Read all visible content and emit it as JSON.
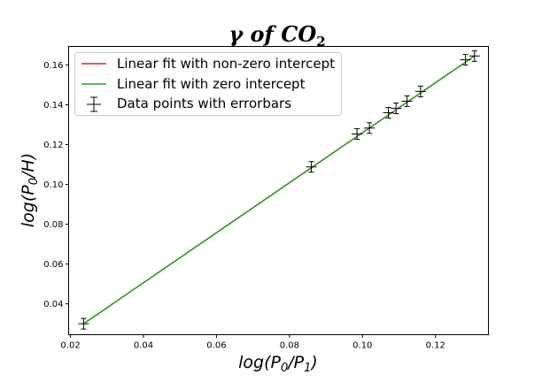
{
  "chart_data": {
    "type": "line",
    "title": {
      "main": "γ of CO",
      "sub": "2"
    },
    "xlabel": {
      "base": "log(P",
      "sub1": "0",
      "mid": "/P",
      "sub2": "1",
      "end": ")"
    },
    "ylabel": {
      "base": "log(P",
      "sub1": "0",
      "end": "/H)"
    },
    "xlim": [
      0.0195,
      0.1345
    ],
    "ylim": [
      0.0245,
      0.1693
    ],
    "xticks": [
      0.02,
      0.04,
      0.06,
      0.08,
      0.1,
      0.12
    ],
    "xtick_labels": [
      "0.02",
      "0.04",
      "0.06",
      "0.08",
      "0.10",
      "0.12"
    ],
    "yticks": [
      0.04,
      0.06,
      0.08,
      0.1,
      0.12,
      0.14,
      0.16
    ],
    "ytick_labels": [
      "0.04",
      "0.06",
      "0.08",
      "0.10",
      "0.12",
      "0.14",
      "0.16"
    ],
    "grid": false,
    "legend_position": "upper-left",
    "series": [
      {
        "name": "Linear fit with non-zero intercept",
        "kind": "line",
        "color": "#d62728",
        "x": [
          0.0236,
          0.1307
        ],
        "y": [
          0.03,
          0.1645
        ]
      },
      {
        "name": "Linear fit with zero intercept",
        "kind": "line",
        "color": "#2ca02c",
        "x": [
          0.0236,
          0.1307
        ],
        "y": [
          0.03,
          0.1645
        ]
      },
      {
        "name": "Data points with errorbars",
        "kind": "errorbar",
        "color": "#000000",
        "x": [
          0.0236,
          0.086,
          0.0985,
          0.1019,
          0.1071,
          0.1092,
          0.1122,
          0.1159,
          0.1282,
          0.1307
        ],
        "y": [
          0.03,
          0.1088,
          0.1253,
          0.1283,
          0.136,
          0.1382,
          0.1418,
          0.1467,
          0.1626,
          0.1645
        ]
      }
    ]
  }
}
